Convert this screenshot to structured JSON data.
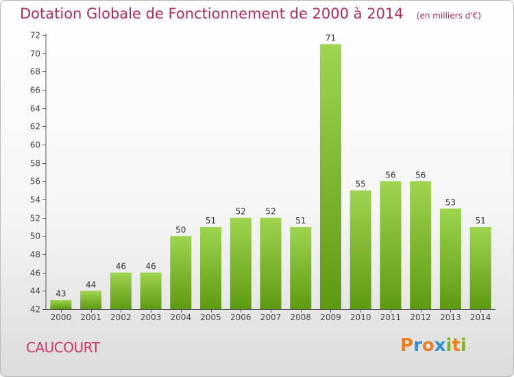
{
  "header": {
    "title": "Dotation Globale de Fonctionnement de 2000 à 2014",
    "unit": "(en milliers d'€)"
  },
  "footer": {
    "commune": "CAUCOURT",
    "brand": "Proxiti"
  },
  "colors": {
    "title": "#b5285e",
    "bar_top": "#9ed54e",
    "bar_bottom": "#5e9a10",
    "axis": "#555555",
    "brand_letters": [
      "#e8801f",
      "#2f8fd3",
      "#e8801f",
      "#2f8fd3",
      "#7ab829",
      "#e8801f",
      "#7ab829"
    ]
  },
  "chart_data": {
    "type": "bar",
    "title": "Dotation Globale de Fonctionnement de 2000 à 2014",
    "subtitle": "(en milliers d'€)",
    "xlabel": "",
    "ylabel": "",
    "categories": [
      "2000",
      "2001",
      "2002",
      "2003",
      "2004",
      "2005",
      "2006",
      "2007",
      "2008",
      "2009",
      "2010",
      "2011",
      "2012",
      "2013",
      "2014"
    ],
    "values": [
      43,
      44,
      46,
      46,
      50,
      51,
      52,
      52,
      51,
      71,
      55,
      56,
      56,
      53,
      51
    ],
    "ylim": [
      42,
      72
    ],
    "yticks": [
      42,
      44,
      46,
      48,
      50,
      52,
      54,
      56,
      58,
      60,
      62,
      64,
      66,
      68,
      70,
      72
    ],
    "grid": false,
    "legend": "none",
    "data_labels": true
  }
}
